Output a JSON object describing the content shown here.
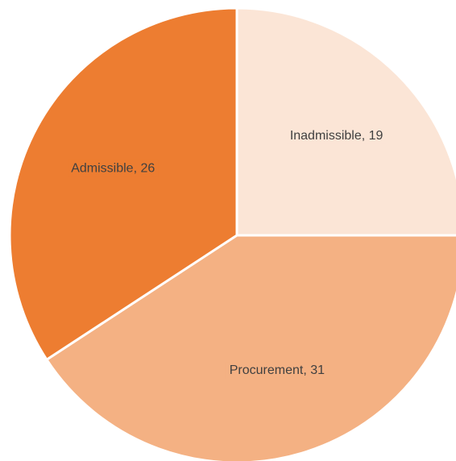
{
  "chart_data": {
    "type": "pie",
    "start_angle_deg": 0,
    "direction": "clockwise",
    "slices": [
      {
        "label": "Inadmissible",
        "value": 19,
        "color": "#FBE5D6",
        "display": "Inadmissible, 19"
      },
      {
        "label": "Procurement",
        "value": 31,
        "color": "#F4B183",
        "display": "Procurement, 31"
      },
      {
        "label": "Admissible",
        "value": 26,
        "color": "#ED7D31",
        "display": "Admissible, 26"
      }
    ],
    "legend": "none",
    "data_labels": "inside"
  }
}
